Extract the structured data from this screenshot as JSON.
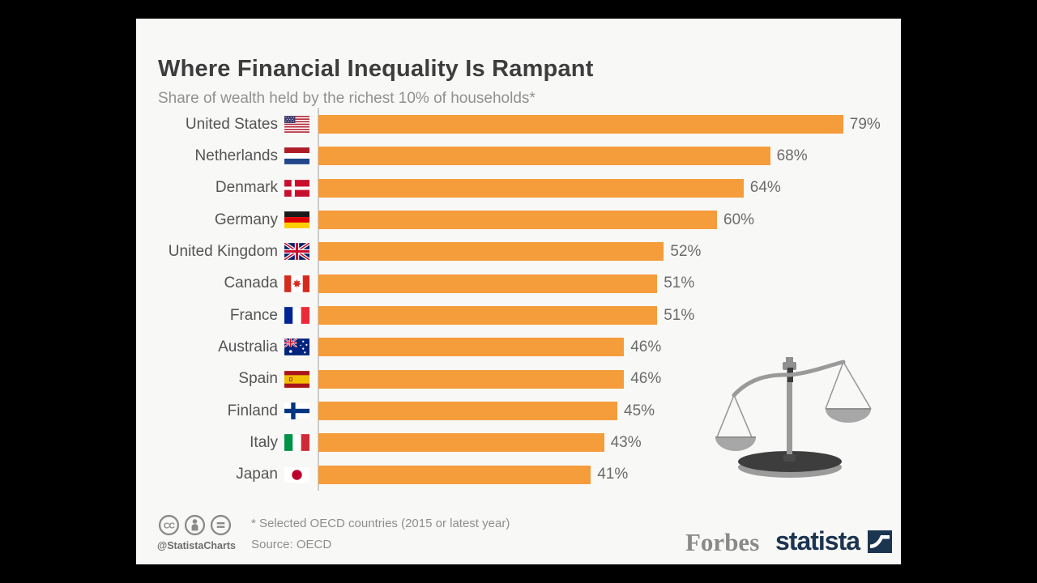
{
  "header": {
    "title": "Where Financial Inequality Is Rampant",
    "subtitle": "Share of wealth held by the richest 10% of households*"
  },
  "chart_data": {
    "type": "bar",
    "orientation": "horizontal",
    "title": "Where Financial Inequality Is Rampant",
    "subtitle": "Share of wealth held by the richest 10% of households*",
    "unit": "%",
    "categories": [
      "United States",
      "Netherlands",
      "Denmark",
      "Germany",
      "United Kingdom",
      "Canada",
      "France",
      "Australia",
      "Spain",
      "Finland",
      "Italy",
      "Japan"
    ],
    "values": [
      79,
      68,
      64,
      60,
      52,
      51,
      51,
      46,
      46,
      45,
      43,
      41
    ],
    "value_labels": [
      "79%",
      "68%",
      "64%",
      "60%",
      "52%",
      "51%",
      "51%",
      "46%",
      "46%",
      "45%",
      "43%",
      "41%"
    ],
    "flags": [
      "us",
      "nl",
      "dk",
      "de",
      "gb",
      "ca",
      "fr",
      "au",
      "es",
      "fi",
      "it",
      "jp"
    ],
    "xlim": [
      0,
      80
    ],
    "grid": false,
    "legend": false,
    "bar_color": "#F59C3B",
    "axis_line_color": "#cccccc"
  },
  "illustration": {
    "name": "unbalanced-scales-icon",
    "color": "#9a9a9a"
  },
  "footer": {
    "license_icons": [
      "cc-icon",
      "attribution-icon",
      "equal-icon"
    ],
    "handle": "@StatistaCharts",
    "note": "* Selected OECD countries (2015 or latest year)",
    "source": "Source: OECD",
    "brands": {
      "forbes": "Forbes",
      "statista": "statista"
    }
  },
  "colors": {
    "stage_background": "#000000",
    "card_background": "#f8f8f7",
    "title_text": "#3d3d3d",
    "subtitle_text": "#919191",
    "label_text": "#545454",
    "value_text": "#6b6b6b",
    "footer_text": "#8e8e8e",
    "statista_navy": "#1b3450",
    "forbes_gray": "#8a8a8a"
  }
}
